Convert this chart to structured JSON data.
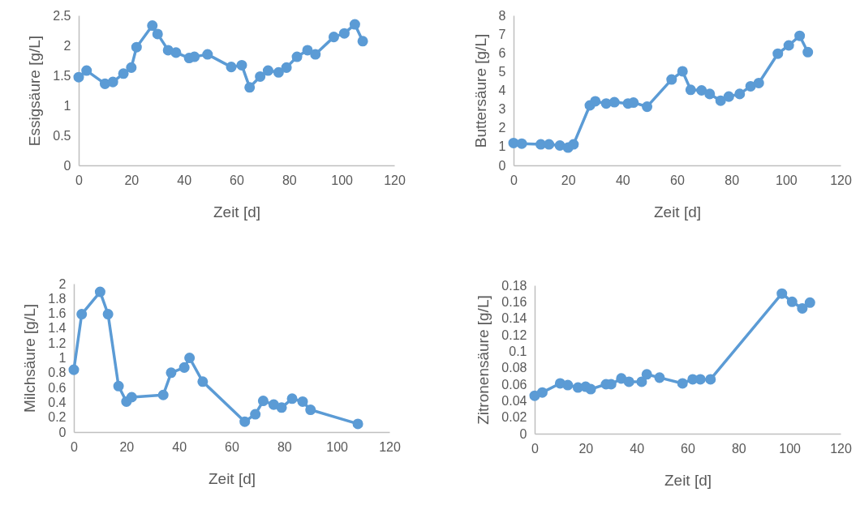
{
  "chart_data": [
    {
      "type": "line",
      "xlabel": "Zeit [d]",
      "ylabel": "Essigsäure [g/L]",
      "color": "#5b9bd5",
      "marker": "circle",
      "x": [
        0,
        3,
        10,
        13,
        17,
        20,
        22,
        28,
        30,
        34,
        37,
        42,
        44,
        49,
        58,
        62,
        65,
        69,
        72,
        76,
        79,
        83,
        87,
        90,
        97,
        101,
        105,
        108
      ],
      "values": [
        1.47,
        1.58,
        1.36,
        1.39,
        1.53,
        1.63,
        1.97,
        2.33,
        2.19,
        1.92,
        1.88,
        1.79,
        1.81,
        1.85,
        1.64,
        1.67,
        1.3,
        1.48,
        1.58,
        1.55,
        1.63,
        1.81,
        1.92,
        1.85,
        2.14,
        2.2,
        2.35,
        2.07
      ],
      "xlim": [
        0,
        120
      ],
      "xticks": [
        0,
        20,
        40,
        60,
        80,
        100,
        120
      ],
      "ylim": [
        0,
        2.5
      ],
      "yticks": [
        0,
        0.5,
        1,
        1.5,
        2,
        2.5
      ]
    },
    {
      "type": "line",
      "xlabel": "Zeit [d]",
      "ylabel": "Buttersäure [g/L]",
      "color": "#5b9bd5",
      "marker": "circle",
      "x": [
        0,
        3,
        10,
        13,
        17,
        20,
        22,
        28,
        30,
        34,
        37,
        42,
        44,
        49,
        58,
        62,
        65,
        69,
        72,
        76,
        79,
        83,
        87,
        90,
        97,
        101,
        105,
        108
      ],
      "values": [
        1.19,
        1.16,
        1.12,
        1.12,
        1.06,
        0.95,
        1.12,
        3.2,
        3.42,
        3.3,
        3.37,
        3.3,
        3.35,
        3.13,
        4.58,
        5.02,
        4.03,
        4.0,
        3.81,
        3.45,
        3.67,
        3.81,
        4.22,
        4.39,
        5.96,
        6.4,
        6.91,
        6.04
      ],
      "xlim": [
        0,
        120
      ],
      "xticks": [
        0,
        20,
        40,
        60,
        80,
        100,
        120
      ],
      "ylim": [
        0,
        8
      ],
      "yticks": [
        0,
        1,
        2,
        3,
        4,
        5,
        6,
        7,
        8
      ]
    },
    {
      "type": "line",
      "xlabel": "Zeit [d]",
      "ylabel": "Milchsäure [g/L]",
      "color": "#5b9bd5",
      "marker": "circle",
      "x": [
        0,
        3,
        10,
        13,
        17,
        20,
        22,
        34,
        37,
        42,
        44,
        49,
        65,
        69,
        72,
        76,
        79,
        83,
        87,
        90,
        108
      ],
      "values": [
        0.84,
        1.59,
        1.89,
        1.59,
        0.62,
        0.41,
        0.47,
        0.5,
        0.8,
        0.87,
        1.0,
        0.68,
        0.14,
        0.24,
        0.42,
        0.37,
        0.33,
        0.45,
        0.41,
        0.3,
        0.11
      ],
      "xlim": [
        0,
        120
      ],
      "xticks": [
        0,
        20,
        40,
        60,
        80,
        100,
        120
      ],
      "ylim": [
        0,
        2
      ],
      "yticks": [
        0,
        0.2,
        0.4,
        0.6,
        0.8,
        1,
        1.2,
        1.4,
        1.6,
        1.8,
        2
      ]
    },
    {
      "type": "line",
      "xlabel": "Zeit [d]",
      "ylabel": "Zitronensäure [g/L]",
      "color": "#5b9bd5",
      "marker": "circle",
      "x": [
        0,
        3,
        10,
        13,
        17,
        20,
        22,
        28,
        30,
        34,
        37,
        42,
        44,
        49,
        58,
        62,
        65,
        69,
        97,
        101,
        105,
        108
      ],
      "values": [
        0.046,
        0.05,
        0.061,
        0.059,
        0.056,
        0.057,
        0.054,
        0.06,
        0.06,
        0.067,
        0.063,
        0.063,
        0.072,
        0.068,
        0.061,
        0.066,
        0.066,
        0.066,
        0.17,
        0.16,
        0.152,
        0.159
      ],
      "xlim": [
        0,
        120
      ],
      "xticks": [
        0,
        20,
        40,
        60,
        80,
        100,
        120
      ],
      "ylim": [
        0,
        0.18
      ],
      "yticks": [
        0,
        0.02,
        0.04,
        0.06,
        0.08,
        0.1,
        0.12,
        0.14,
        0.16,
        0.18
      ]
    }
  ]
}
